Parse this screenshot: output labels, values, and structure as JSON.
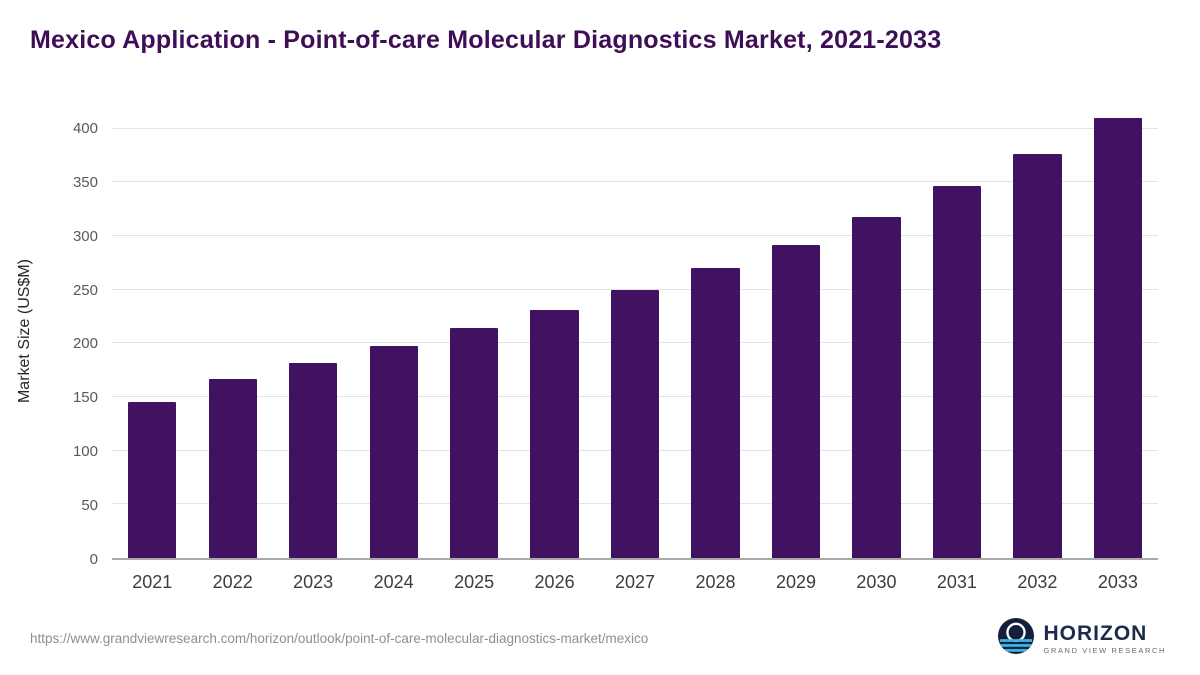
{
  "title": "Mexico Application - Point-of-care Molecular Diagnostics Market, 2021-2033",
  "chart_data": {
    "type": "bar",
    "title": "Mexico Application - Point-of-care Molecular Diagnostics Market, 2021-2033",
    "xlabel": "",
    "ylabel": "Market Size (US$M)",
    "categories": [
      "2021",
      "2022",
      "2023",
      "2024",
      "2025",
      "2026",
      "2027",
      "2028",
      "2029",
      "2030",
      "2031",
      "2032",
      "2033"
    ],
    "values": [
      145,
      167,
      182,
      198,
      214,
      231,
      250,
      270,
      292,
      318,
      347,
      377,
      410
    ],
    "ylim": [
      0,
      400
    ],
    "ytick_step": 50,
    "grid": "horizontal",
    "legend": "none",
    "bar_color": "#421262"
  },
  "colors": {
    "title": "#3e0e56",
    "bar": "#421262",
    "gridline": "#e3e3e3",
    "axis": "#a9a9a9"
  },
  "footer": {
    "source_url": "https://www.grandviewresearch.com/horizon/outlook/point-of-care-molecular-diagnostics-market/mexico",
    "logo_title": "HORIZON",
    "logo_subtitle": "GRAND VIEW RESEARCH"
  }
}
